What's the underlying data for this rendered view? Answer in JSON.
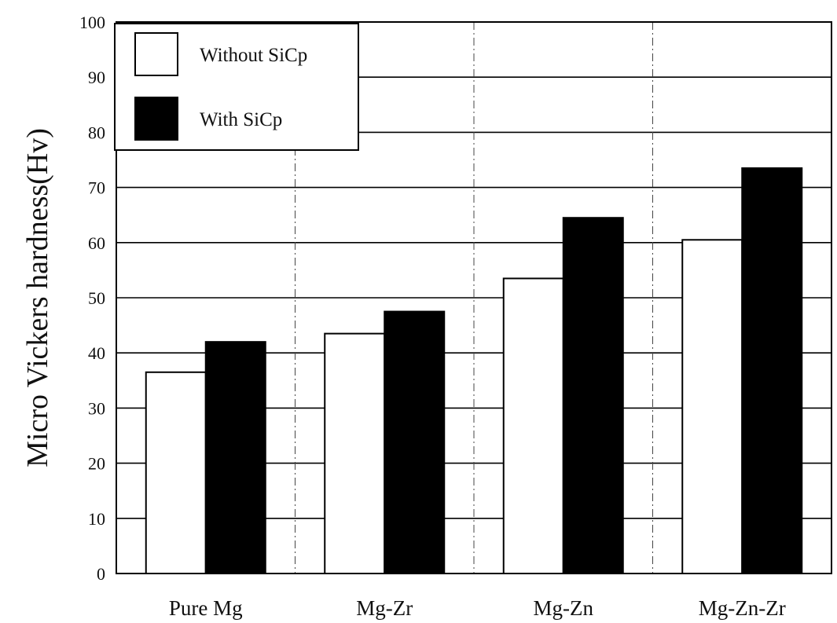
{
  "chart_data": {
    "type": "bar",
    "title": "",
    "xlabel": "",
    "ylabel": "Micro Vickers hardness(Hv)",
    "categories": [
      "Pure Mg",
      "Mg-Zr",
      "Mg-Zn",
      "Mg-Zn-Zr"
    ],
    "series": [
      {
        "name": "Without SiCp",
        "values": [
          36.5,
          43.5,
          53.5,
          60.5
        ],
        "color": "#ffffff"
      },
      {
        "name": "With SiCp",
        "values": [
          42,
          47.5,
          64.5,
          73.5
        ],
        "color": "#000000"
      }
    ],
    "ylim": [
      0,
      100
    ],
    "yticks": [
      "0",
      "10",
      "20",
      "30",
      "40",
      "50",
      "60",
      "70",
      "80",
      "90",
      "100"
    ],
    "grid": true,
    "legend_position": "top-left"
  }
}
